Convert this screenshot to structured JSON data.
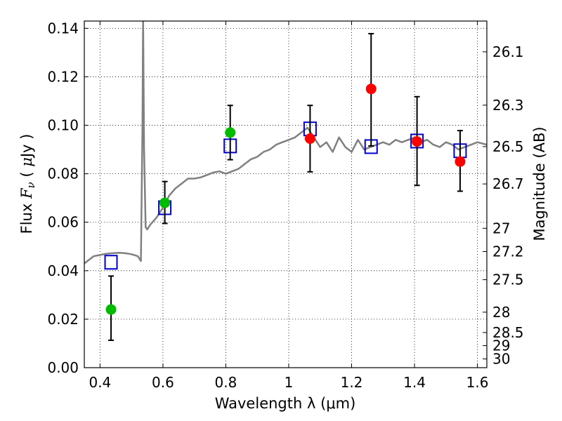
{
  "chart_data": {
    "type": "scatter",
    "title": "",
    "xlabel": "Wavelength  λ (μm)",
    "ylabel": "Flux  Fν  ( μJy )",
    "y2label": "Magnitude (AB)",
    "xlim": [
      0.35,
      1.63
    ],
    "ylim": [
      0.0,
      0.143
    ],
    "grid": true,
    "x_ticks": [
      0.4,
      0.6,
      0.8,
      1.0,
      1.2,
      1.4,
      1.6
    ],
    "x_tick_labels": [
      "0.4",
      "0.6",
      "0.8",
      "1",
      "1.2",
      "1.4",
      "1.6"
    ],
    "y_ticks": [
      0.0,
      0.02,
      0.04,
      0.06,
      0.08,
      0.1,
      0.12,
      0.14
    ],
    "y_tick_labels": [
      "0.00",
      "0.02",
      "0.04",
      "0.06",
      "0.08",
      "0.10",
      "0.12",
      "0.14"
    ],
    "y2_ticks": [
      {
        "label": "26.1",
        "flux": 0.1303
      },
      {
        "label": "26.3",
        "flux": 0.1083
      },
      {
        "label": "26.5",
        "flux": 0.0912
      },
      {
        "label": "26.7",
        "flux": 0.0758
      },
      {
        "label": "27",
        "flux": 0.0575
      },
      {
        "label": "27.2",
        "flux": 0.0479
      },
      {
        "label": "27.5",
        "flux": 0.0363
      },
      {
        "label": "28",
        "flux": 0.0229
      },
      {
        "label": "28.5",
        "flux": 0.0145
      },
      {
        "label": "29",
        "flux": 0.0091
      },
      {
        "label": "30",
        "flux": 0.0036
      }
    ],
    "series": [
      {
        "name": "",
        "kind": "line",
        "color": "#808080",
        "x": [
          0.35,
          0.36,
          0.38,
          0.4,
          0.42,
          0.44,
          0.46,
          0.48,
          0.5,
          0.52,
          0.525,
          0.53,
          0.535,
          0.537,
          0.54,
          0.545,
          0.55,
          0.56,
          0.58,
          0.6,
          0.62,
          0.64,
          0.66,
          0.68,
          0.7,
          0.72,
          0.74,
          0.76,
          0.78,
          0.8,
          0.82,
          0.84,
          0.86,
          0.88,
          0.9,
          0.92,
          0.94,
          0.96,
          0.98,
          1.0,
          1.02,
          1.04,
          1.06,
          1.08,
          1.1,
          1.12,
          1.14,
          1.16,
          1.18,
          1.2,
          1.22,
          1.24,
          1.26,
          1.28,
          1.3,
          1.32,
          1.34,
          1.36,
          1.38,
          1.4,
          1.42,
          1.44,
          1.46,
          1.48,
          1.5,
          1.52,
          1.54,
          1.56,
          1.58,
          1.6,
          1.63
        ],
        "y": [
          0.043,
          0.044,
          0.046,
          0.0465,
          0.047,
          0.0472,
          0.0474,
          0.0472,
          0.0468,
          0.046,
          0.045,
          0.044,
          0.1,
          0.145,
          0.09,
          0.058,
          0.057,
          0.059,
          0.062,
          0.066,
          0.071,
          0.074,
          0.076,
          0.078,
          0.078,
          0.0785,
          0.0795,
          0.0805,
          0.081,
          0.08,
          0.081,
          0.082,
          0.084,
          0.086,
          0.087,
          0.089,
          0.09,
          0.092,
          0.093,
          0.094,
          0.095,
          0.097,
          0.099,
          0.095,
          0.091,
          0.093,
          0.089,
          0.095,
          0.091,
          0.089,
          0.094,
          0.09,
          0.091,
          0.092,
          0.093,
          0.092,
          0.094,
          0.093,
          0.094,
          0.095,
          0.093,
          0.094,
          0.092,
          0.091,
          0.093,
          0.092,
          0.09,
          0.091,
          0.092,
          0.093,
          0.092
        ]
      },
      {
        "name": "",
        "kind": "squares",
        "color": "#0000cc",
        "x": [
          0.435,
          0.606,
          0.814,
          1.068,
          1.262,
          1.408,
          1.545
        ],
        "y": [
          0.0435,
          0.066,
          0.0915,
          0.0985,
          0.0912,
          0.0935,
          0.0895
        ]
      },
      {
        "name": "",
        "kind": "points",
        "color": "#00bb00",
        "x": [
          0.435,
          0.606,
          0.814
        ],
        "y": [
          0.024,
          0.068,
          0.097
        ],
        "yerr_low": [
          0.0113,
          0.0595,
          0.0858
        ],
        "yerr_high": [
          0.0378,
          0.0768,
          0.1082
        ]
      },
      {
        "name": "",
        "kind": "points",
        "color": "#ff0000",
        "x": [
          1.068,
          1.262,
          1.408,
          1.545
        ],
        "y": [
          0.0945,
          0.115,
          0.0933,
          0.085
        ],
        "yerr_low": [
          0.0808,
          0.0915,
          0.0752,
          0.0728
        ],
        "yerr_high": [
          0.1082,
          0.1378,
          0.1118,
          0.0978
        ]
      }
    ]
  }
}
